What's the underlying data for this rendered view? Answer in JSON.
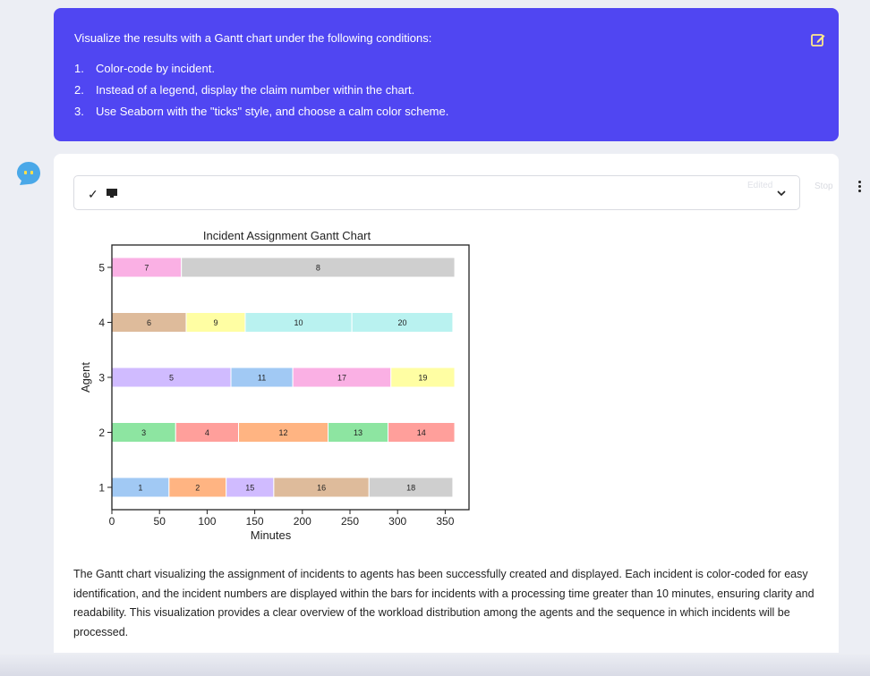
{
  "user_message": {
    "intro": "Visualize the results with a Gantt chart under the following conditions:",
    "items": [
      {
        "num": "1.",
        "text": "Color-code by incident."
      },
      {
        "num": "2.",
        "text": "Instead of a legend, display the claim number within the chart."
      },
      {
        "num": "3.",
        "text": "Use Seaborn with the \"ticks\" style, and choose a calm color scheme."
      }
    ]
  },
  "tool_call": {
    "status_icon": "check-icon",
    "terminal_icon": "monitor-icon",
    "faint_label": "Edited",
    "stop_label": "Stop"
  },
  "chart_data": {
    "type": "bar",
    "orientation": "horizontal-gantt",
    "title": "Incident Assignment Gantt Chart",
    "xlabel": "Minutes",
    "ylabel": "Agent",
    "xlim": [
      0,
      375
    ],
    "x_ticks": [
      0,
      50,
      100,
      150,
      200,
      250,
      300,
      350
    ],
    "y_ticks": [
      1,
      2,
      3,
      4,
      5
    ],
    "legend": "none",
    "bars": [
      {
        "agent": 1,
        "incident": "1",
        "start": 0,
        "end": 60,
        "color": "#a1c9f4"
      },
      {
        "agent": 1,
        "incident": "2",
        "start": 60,
        "end": 120,
        "color": "#ffb482"
      },
      {
        "agent": 1,
        "incident": "15",
        "start": 120,
        "end": 170,
        "color": "#d0bbff"
      },
      {
        "agent": 1,
        "incident": "16",
        "start": 170,
        "end": 270,
        "color": "#debb9b"
      },
      {
        "agent": 1,
        "incident": "18",
        "start": 270,
        "end": 358,
        "color": "#cfcfcf"
      },
      {
        "agent": 2,
        "incident": "3",
        "start": 0,
        "end": 67,
        "color": "#8de5a1"
      },
      {
        "agent": 2,
        "incident": "4",
        "start": 67,
        "end": 133,
        "color": "#ff9f9b"
      },
      {
        "agent": 2,
        "incident": "12",
        "start": 133,
        "end": 227,
        "color": "#ffb482"
      },
      {
        "agent": 2,
        "incident": "13",
        "start": 227,
        "end": 290,
        "color": "#8de5a1"
      },
      {
        "agent": 2,
        "incident": "14",
        "start": 290,
        "end": 360,
        "color": "#ff9f9b"
      },
      {
        "agent": 3,
        "incident": "5",
        "start": 0,
        "end": 125,
        "color": "#d0bbff"
      },
      {
        "agent": 3,
        "incident": "11",
        "start": 125,
        "end": 190,
        "color": "#a1c9f4"
      },
      {
        "agent": 3,
        "incident": "17",
        "start": 190,
        "end": 293,
        "color": "#fab0e4"
      },
      {
        "agent": 3,
        "incident": "19",
        "start": 293,
        "end": 360,
        "color": "#fffea3"
      },
      {
        "agent": 4,
        "incident": "6",
        "start": 0,
        "end": 78,
        "color": "#debb9b"
      },
      {
        "agent": 4,
        "incident": "9",
        "start": 78,
        "end": 140,
        "color": "#fffea3"
      },
      {
        "agent": 4,
        "incident": "10",
        "start": 140,
        "end": 252,
        "color": "#b9f2f0"
      },
      {
        "agent": 4,
        "incident": "20",
        "start": 252,
        "end": 358,
        "color": "#b9f2f0"
      },
      {
        "agent": 5,
        "incident": "7",
        "start": 0,
        "end": 73,
        "color": "#fab0e4"
      },
      {
        "agent": 5,
        "incident": "8",
        "start": 73,
        "end": 360,
        "color": "#cfcfcf"
      }
    ]
  },
  "response_text": "The Gantt chart visualizing the assignment of incidents to agents has been successfully created and displayed. Each incident is color-coded for easy identification, and the incident numbers are displayed within the bars for incidents with a processing time greater than 10 minutes, ensuring clarity and readability. This visualization provides a clear overview of the workload distribution among the agents and the sequence in which incidents will be processed.",
  "colors": {
    "user_bubble": "#5046f2",
    "avatar": "#4aa8e8",
    "page_bg": "#eceef4"
  }
}
